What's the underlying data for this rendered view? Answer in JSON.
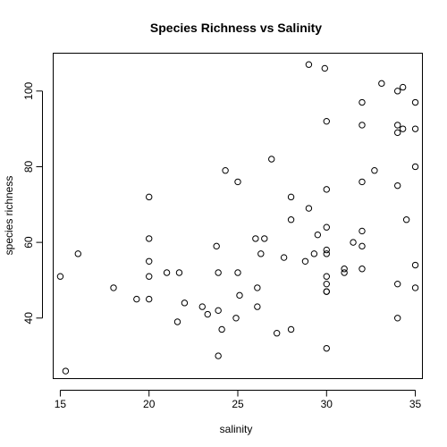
{
  "chart_data": {
    "type": "scatter",
    "title": "Species Richness vs Salinity",
    "xlabel": "salinity",
    "ylabel": "species richness",
    "xlim": [
      14.6,
      35.4
    ],
    "ylim": [
      24,
      110
    ],
    "xticks": [
      15,
      20,
      25,
      30,
      35
    ],
    "yticks": [
      40,
      60,
      80,
      100
    ],
    "grid": false,
    "marker": "open-circle",
    "x": [
      15.0,
      15.3,
      16.0,
      18.0,
      19.3,
      20.0,
      20.0,
      20.0,
      20.0,
      20.0,
      21.0,
      21.7,
      21.6,
      22.0,
      23.0,
      23.3,
      23.8,
      23.9,
      23.9,
      23.9,
      24.1,
      24.3,
      24.9,
      25.0,
      25.0,
      25.1,
      26.0,
      26.1,
      26.1,
      26.3,
      26.5,
      26.9,
      27.2,
      27.6,
      28.0,
      28.0,
      28.0,
      28.8,
      29.0,
      29.0,
      29.3,
      29.5,
      29.9,
      30.0,
      30.0,
      30.0,
      30.0,
      30.0,
      30.0,
      30.0,
      30.0,
      30.0,
      30.0,
      31.0,
      31.0,
      31.5,
      32.0,
      32.0,
      32.0,
      32.0,
      32.0,
      32.0,
      32.7,
      33.1,
      34.0,
      34.0,
      34.0,
      34.0,
      34.0,
      34.0,
      34.3,
      34.3,
      34.5,
      35.0,
      35.0,
      35.0,
      35.0,
      35.0
    ],
    "y": [
      51,
      26,
      57,
      48,
      45,
      72,
      61,
      55,
      51,
      45,
      52,
      52,
      39,
      44,
      43,
      41,
      59,
      52,
      42,
      30,
      37,
      79,
      40,
      76,
      52,
      46,
      61,
      48,
      43,
      57,
      61,
      82,
      36,
      56,
      72,
      66,
      37,
      55,
      107,
      69,
      57,
      62,
      106,
      92,
      74,
      64,
      57,
      51,
      49,
      47,
      47,
      32,
      58,
      53,
      52,
      60,
      97,
      91,
      76,
      63,
      59,
      53,
      79,
      102,
      100,
      91,
      89,
      75,
      49,
      40,
      101,
      90,
      66,
      97,
      90,
      80,
      54,
      48
    ]
  }
}
